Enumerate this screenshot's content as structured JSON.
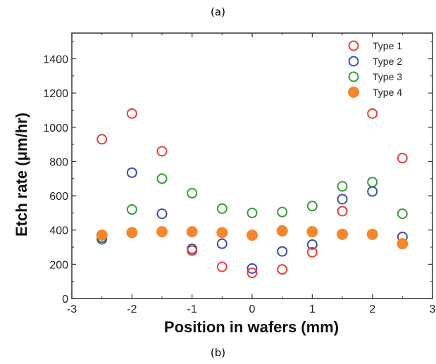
{
  "caption_top": "(a)",
  "caption_bottom": "(b)",
  "chart_data": {
    "type": "scatter",
    "title": "",
    "xlabel": "Position in wafers (mm)",
    "ylabel": "Etch rate (μm/hr)",
    "xlim": [
      -3,
      3
    ],
    "ylim": [
      0,
      1550
    ],
    "xticks": [
      -3,
      -2,
      -1,
      0,
      1,
      2,
      3
    ],
    "yticks": [
      0,
      200,
      400,
      600,
      800,
      1000,
      1200,
      1400
    ],
    "grid": false,
    "legend_position": "top-right",
    "x": [
      -2.5,
      -2,
      -1.5,
      -1,
      -0.5,
      0,
      0.5,
      1,
      1.5,
      2,
      2.5
    ],
    "series": [
      {
        "name": "Type 1",
        "color": "#e8403b",
        "marker": "open-circle",
        "values": [
          930,
          1080,
          860,
          280,
          185,
          150,
          170,
          270,
          510,
          1080,
          820
        ]
      },
      {
        "name": "Type 2",
        "color": "#3d4cb0",
        "marker": "open-circle",
        "values": [
          355,
          735,
          495,
          290,
          320,
          175,
          275,
          315,
          580,
          625,
          360
        ]
      },
      {
        "name": "Type 3",
        "color": "#3a9a3a",
        "marker": "open-circle",
        "values": [
          345,
          520,
          700,
          615,
          525,
          500,
          505,
          540,
          655,
          680,
          495
        ]
      },
      {
        "name": "Type 4",
        "color": "#f5872a",
        "marker": "filled-circle",
        "values": [
          370,
          385,
          390,
          390,
          385,
          370,
          395,
          390,
          375,
          375,
          320
        ]
      }
    ]
  }
}
